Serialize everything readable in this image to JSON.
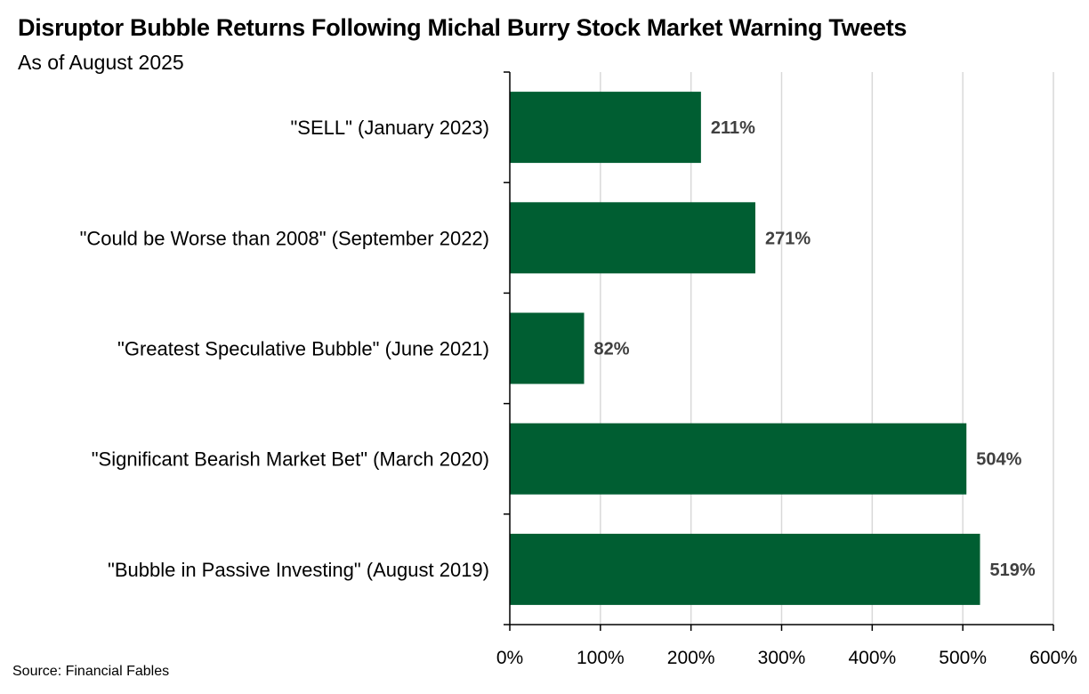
{
  "chart_data": {
    "type": "bar",
    "orientation": "horizontal",
    "title": "Disruptor Bubble Returns Following Michal Burry Stock Market Warning Tweets",
    "subtitle": "As of August 2025",
    "source": "Source: Financial Fables",
    "categories": [
      "\"SELL\" (January 2023)",
      "\"Could be Worse than 2008\" (September 2022)",
      "\"Greatest Speculative Bubble\" (June 2021)",
      "\"Significant Bearish Market Bet\" (March 2020)",
      "\"Bubble in Passive Investing\" (August 2019)"
    ],
    "values": [
      211,
      271,
      82,
      504,
      519
    ],
    "data_labels": [
      "211%",
      "271%",
      "82%",
      "504%",
      "519%"
    ],
    "xlim": [
      0,
      600
    ],
    "xticks": [
      0,
      100,
      200,
      300,
      400,
      500,
      600
    ],
    "xtick_labels": [
      "0%",
      "100%",
      "200%",
      "300%",
      "400%",
      "500%",
      "600%"
    ],
    "xlabel": "",
    "ylabel": "",
    "grid": "vertical",
    "legend": "none",
    "colors": {
      "bar": "#005e32",
      "grid": "#d9d9d9",
      "axis": "#000000",
      "data_label": "#404040"
    }
  }
}
